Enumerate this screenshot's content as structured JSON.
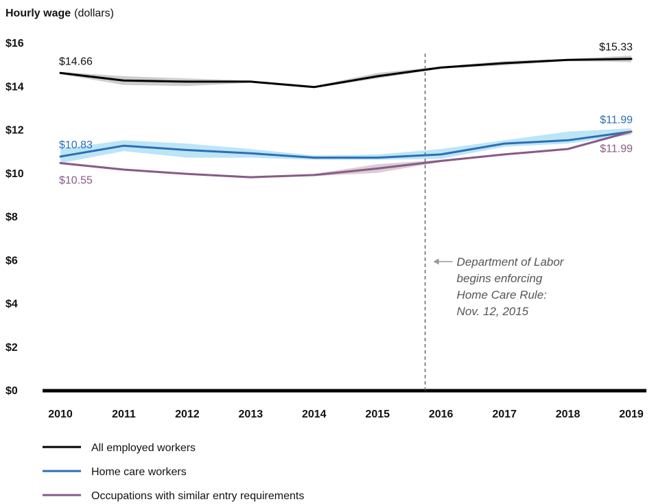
{
  "chart_data": {
    "type": "line",
    "ylabel": "Hourly wage",
    "ylabel_unit": "(dollars)",
    "ylim": [
      0,
      16
    ],
    "yticks": [
      {
        "value": 16,
        "label": "$16"
      },
      {
        "value": 14,
        "label": "$14"
      },
      {
        "value": 12,
        "label": "$12"
      },
      {
        "value": 10,
        "label": "$10"
      },
      {
        "value": 8,
        "label": "$8"
      },
      {
        "value": 6,
        "label": "$6"
      },
      {
        "value": 4,
        "label": "$4"
      },
      {
        "value": 2,
        "label": "$2"
      },
      {
        "value": 0,
        "label": "$0"
      }
    ],
    "x": [
      "2010",
      "2011",
      "2012",
      "2013",
      "2014",
      "2015",
      "2016",
      "2017",
      "2018",
      "2019"
    ],
    "series": [
      {
        "name": "All employed workers",
        "color": "#000000",
        "band_color": "#c8c8c8",
        "values": [
          14.6,
          14.25,
          14.2,
          14.2,
          13.95,
          14.45,
          14.85,
          15.05,
          15.2,
          15.25
        ],
        "band_low": [
          14.55,
          14.05,
          14.0,
          14.15,
          13.9,
          14.35,
          14.8,
          14.95,
          15.15,
          15.1
        ],
        "band_high": [
          14.65,
          14.45,
          14.35,
          14.25,
          14.0,
          14.6,
          14.9,
          15.15,
          15.25,
          15.4
        ]
      },
      {
        "name": "Home care workers",
        "color": "#2c6eb5",
        "band_color": "#b5e2f5",
        "values": [
          10.75,
          11.25,
          11.05,
          10.9,
          10.7,
          10.7,
          10.85,
          11.35,
          11.5,
          11.9
        ],
        "band_low": [
          10.45,
          11.0,
          10.7,
          10.7,
          10.6,
          10.6,
          10.65,
          11.2,
          11.35,
          11.75
        ],
        "band_high": [
          11.1,
          11.5,
          11.35,
          11.1,
          10.8,
          10.85,
          11.1,
          11.5,
          11.9,
          12.05
        ]
      },
      {
        "name": "Occupations with similar entry requirements",
        "color": "#8a5a85",
        "band_color": "#d7c6d2",
        "values": [
          10.45,
          10.15,
          9.95,
          9.8,
          9.9,
          10.2,
          10.55,
          10.85,
          11.1,
          11.9
        ],
        "band_low": [
          10.4,
          10.1,
          9.9,
          9.75,
          9.85,
          10.0,
          10.5,
          10.8,
          11.05,
          11.85
        ],
        "band_high": [
          10.5,
          10.2,
          10.0,
          9.85,
          9.95,
          10.4,
          10.6,
          10.9,
          11.15,
          11.95
        ]
      }
    ],
    "data_labels": [
      {
        "text": "$14.66",
        "color": "#111111",
        "series": 0,
        "point": 0,
        "pos": "above"
      },
      {
        "text": "$15.33",
        "color": "#111111",
        "series": 0,
        "point": 9,
        "pos": "above"
      },
      {
        "text": "$10.83",
        "color": "#2c6eb5",
        "series": 1,
        "point": 0,
        "pos": "above"
      },
      {
        "text": "$11.99",
        "color": "#2c6eb5",
        "series": 1,
        "point": 9,
        "pos": "above"
      },
      {
        "text": "$10.55",
        "color": "#8a5a85",
        "series": 2,
        "point": 0,
        "pos": "below"
      },
      {
        "text": "$11.99",
        "color": "#8a5a85",
        "series": 2,
        "point": 9,
        "pos": "below"
      }
    ],
    "annotation": {
      "x_value": 5.75,
      "lines": [
        "Department of Labor",
        "begins enforcing",
        "Home Care Rule:",
        "Nov. 12, 2015"
      ],
      "line_color": "#666666"
    },
    "grid": false,
    "legend": "bottom-left"
  }
}
